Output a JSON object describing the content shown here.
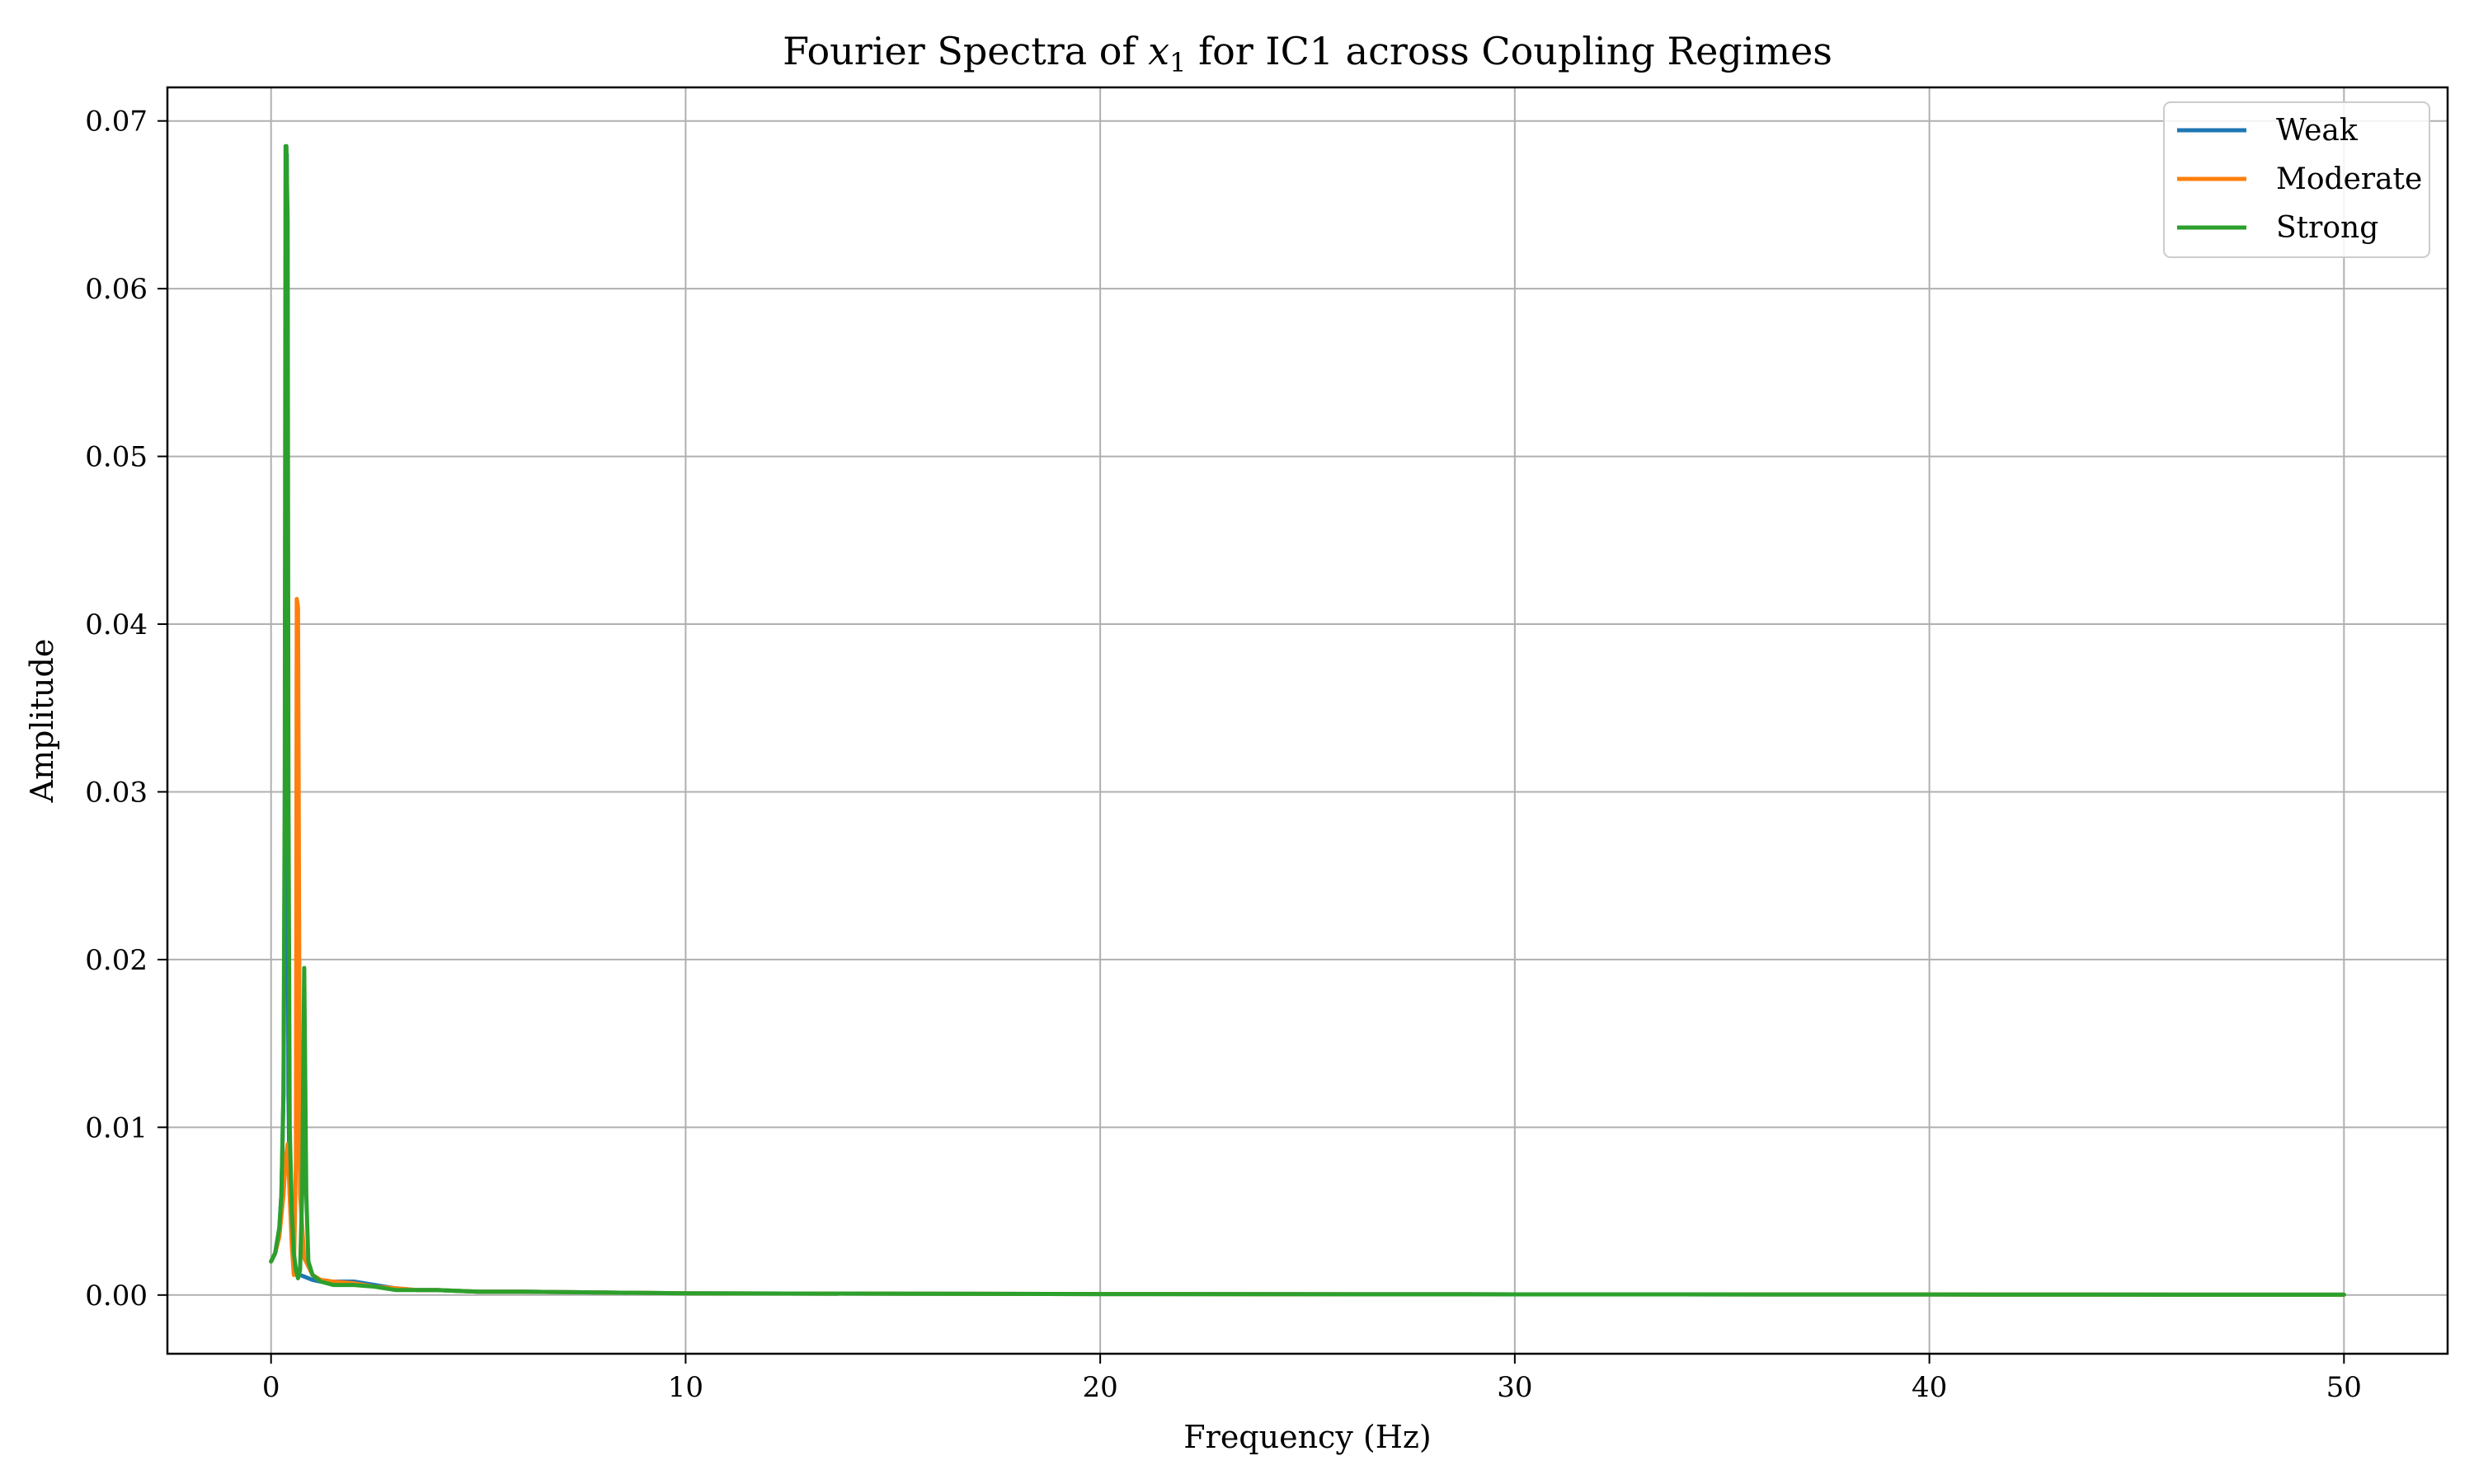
{
  "chart_data": {
    "type": "line",
    "title": "Fourier Spectra of x1 for IC1 across Coupling Regimes",
    "xlabel": "Frequency (Hz)",
    "ylabel": "Amplitude",
    "xlim": [
      -2.5,
      52.5
    ],
    "ylim": [
      -0.0035,
      0.072
    ],
    "xticks": [
      0,
      10,
      20,
      30,
      40,
      50
    ],
    "yticks": [
      0.0,
      0.01,
      0.02,
      0.03,
      0.04,
      0.05,
      0.06,
      0.07
    ],
    "xtick_labels": [
      "0",
      "10",
      "20",
      "30",
      "40",
      "50"
    ],
    "ytick_labels": [
      "0.00",
      "0.01",
      "0.02",
      "0.03",
      "0.04",
      "0.05",
      "0.06",
      "0.07"
    ],
    "grid": true,
    "legend_position": "top-right",
    "series": [
      {
        "name": "Weak",
        "color": "#1f77b4",
        "x": [
          0.0,
          0.1,
          0.2,
          0.25,
          0.3,
          0.33,
          0.36,
          0.38,
          0.4,
          0.42,
          0.45,
          0.5,
          0.55,
          0.6,
          0.7,
          0.8,
          1.0,
          1.2,
          1.5,
          2.0,
          2.5,
          3.0,
          3.5,
          4.0,
          5.0,
          6.0,
          8.0,
          10.0,
          15.0,
          20.0,
          30.0,
          40.0,
          50.0
        ],
        "y": [
          0.002,
          0.0025,
          0.004,
          0.006,
          0.012,
          0.025,
          0.068,
          0.068,
          0.03,
          0.012,
          0.006,
          0.0035,
          0.0022,
          0.0016,
          0.0012,
          0.0011,
          0.0009,
          0.0008,
          0.0008,
          0.0008,
          0.0006,
          0.0004,
          0.0003,
          0.0003,
          0.0002,
          0.0002,
          0.00015,
          0.0001,
          8e-05,
          6e-05,
          4e-05,
          3e-05,
          2e-05
        ]
      },
      {
        "name": "Moderate",
        "color": "#ff7f0e",
        "x": [
          0.0,
          0.1,
          0.2,
          0.3,
          0.35,
          0.4,
          0.45,
          0.5,
          0.55,
          0.6,
          0.62,
          0.65,
          0.7,
          0.8,
          1.0,
          1.2,
          1.5,
          2.0,
          2.5,
          3.0,
          3.5,
          4.0,
          5.0,
          6.0,
          8.0,
          10.0,
          15.0,
          20.0,
          30.0,
          40.0,
          50.0
        ],
        "y": [
          0.002,
          0.0025,
          0.0035,
          0.006,
          0.008,
          0.009,
          0.006,
          0.003,
          0.0012,
          0.008,
          0.0415,
          0.041,
          0.006,
          0.0022,
          0.0012,
          0.0009,
          0.0008,
          0.0007,
          0.0005,
          0.0004,
          0.0003,
          0.0003,
          0.0002,
          0.0002,
          0.00015,
          0.0001,
          8e-05,
          6e-05,
          4e-05,
          3e-05,
          2e-05
        ]
      },
      {
        "name": "Strong",
        "color": "#2ca02c",
        "x": [
          0.0,
          0.1,
          0.2,
          0.25,
          0.3,
          0.33,
          0.35,
          0.37,
          0.4,
          0.42,
          0.45,
          0.5,
          0.55,
          0.6,
          0.65,
          0.7,
          0.75,
          0.8,
          0.85,
          0.9,
          1.0,
          1.2,
          1.5,
          2.0,
          2.5,
          3.0,
          3.5,
          4.0,
          5.0,
          6.0,
          8.0,
          10.0,
          15.0,
          20.0,
          30.0,
          40.0,
          50.0
        ],
        "y": [
          0.002,
          0.0025,
          0.004,
          0.006,
          0.012,
          0.03,
          0.0685,
          0.0685,
          0.064,
          0.03,
          0.01,
          0.005,
          0.0025,
          0.0015,
          0.001,
          0.0015,
          0.006,
          0.0195,
          0.006,
          0.002,
          0.0012,
          0.0008,
          0.0006,
          0.0006,
          0.0005,
          0.0003,
          0.0003,
          0.0003,
          0.0002,
          0.0002,
          0.00015,
          0.0001,
          8e-05,
          6e-05,
          4e-05,
          3e-05,
          2e-05
        ]
      }
    ]
  }
}
